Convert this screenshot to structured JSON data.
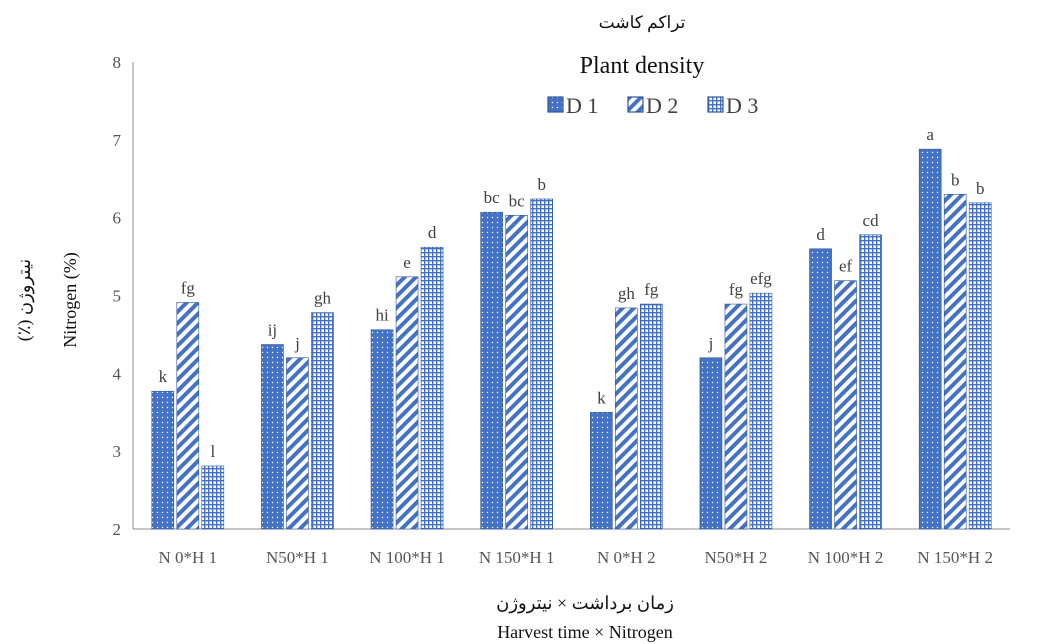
{
  "chart_data": {
    "type": "bar",
    "legend_title_fa": "تراکم کاشت",
    "legend_title_en": "Plant density",
    "legend_position": "top-right",
    "grid": false,
    "xlabel_fa": "زمان برداشت × نیتروژن",
    "xlabel_en": "Harvest time × Nitrogen",
    "ylabel_fa": "نیتروژن (٪)",
    "ylabel_en": "Nitrogen (%)",
    "ylim": [
      2,
      8
    ],
    "yticks": [
      "2",
      "3",
      "4",
      "5",
      "6",
      "7",
      "8"
    ],
    "categories": [
      "N 0*H 1",
      "N50*H 1",
      "N 100*H 1",
      "N 150*H 1",
      "N 0*H 2",
      "N50*H 2",
      "N 100*H 2",
      "N 150*H 2"
    ],
    "series": [
      {
        "name": "D 1",
        "pattern": "dots",
        "color": "#4472c4",
        "values": [
          3.77,
          4.37,
          4.56,
          6.07,
          3.5,
          4.2,
          5.6,
          6.88
        ],
        "letters": [
          "k",
          "ij",
          "hi",
          "bc",
          "k",
          "j",
          "d",
          "a"
        ]
      },
      {
        "name": "D 2",
        "pattern": "diagonal",
        "color": "#4472c4",
        "values": [
          4.91,
          4.2,
          5.24,
          6.03,
          4.84,
          4.89,
          5.19,
          6.3
        ],
        "letters": [
          "fg",
          "j",
          "e",
          "bc",
          "gh",
          "fg",
          "ef",
          "b"
        ]
      },
      {
        "name": "D 3",
        "pattern": "grid",
        "color": "#4472c4",
        "values": [
          2.81,
          4.78,
          5.62,
          6.24,
          4.89,
          5.03,
          5.78,
          6.19
        ],
        "letters": [
          "l",
          "gh",
          "d",
          "b",
          "fg",
          "efg",
          "cd",
          "b"
        ]
      }
    ]
  }
}
